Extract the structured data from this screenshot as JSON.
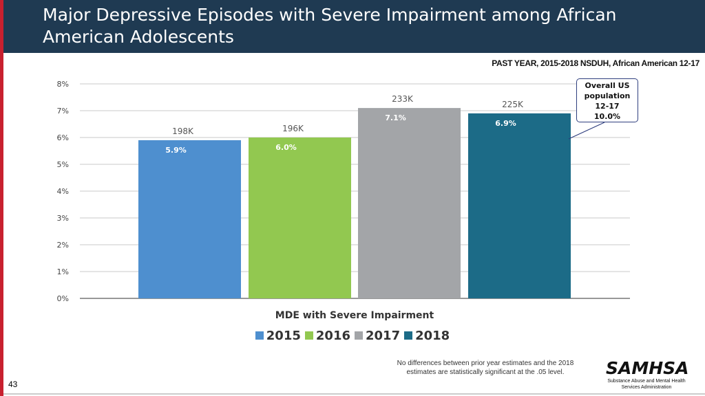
{
  "header": {
    "title_line1": "Major Depressive Episodes with Severe Impairment among African",
    "title_line2": "American Adolescents",
    "subtitle": "PAST YEAR, 2015-2018 NSDUH, African American 12-17"
  },
  "callout": {
    "line1": "Overall US",
    "line2": "population",
    "line3": "12-17",
    "line4": "10.0%"
  },
  "footnote": {
    "line1": "No differences between prior year estimates and the 2018",
    "line2": "estimates are statistically significant at the .05 level."
  },
  "page_number": "43",
  "logo": {
    "name": "SAMHSA",
    "line1": "Substance Abuse and Mental Health",
    "line2": "Services Administration"
  },
  "colors": {
    "header_bg": "#1f3a52",
    "accent_red": "#c8202f",
    "bar_2015": "#4e8fcf",
    "bar_2016": "#92c850",
    "bar_2017": "#a3a5a8",
    "bar_2018": "#1c6b87"
  },
  "chart_data": {
    "type": "bar",
    "title": "",
    "xlabel": "MDE with Severe Impairment",
    "ylabel": "",
    "ylim": [
      0,
      8
    ],
    "yticks": [
      "0%",
      "1%",
      "2%",
      "3%",
      "4%",
      "5%",
      "6%",
      "7%",
      "8%"
    ],
    "categories": [
      "2015",
      "2016",
      "2017",
      "2018"
    ],
    "values": [
      5.9,
      6.0,
      7.1,
      6.9
    ],
    "value_labels": [
      "5.9%",
      "6.0%",
      "7.1%",
      "6.9%"
    ],
    "count_labels": [
      "198K",
      "196K",
      "233K",
      "225K"
    ],
    "legend": [
      "2015",
      "2016",
      "2017",
      "2018"
    ],
    "legend_position": "bottom",
    "grid": true
  }
}
